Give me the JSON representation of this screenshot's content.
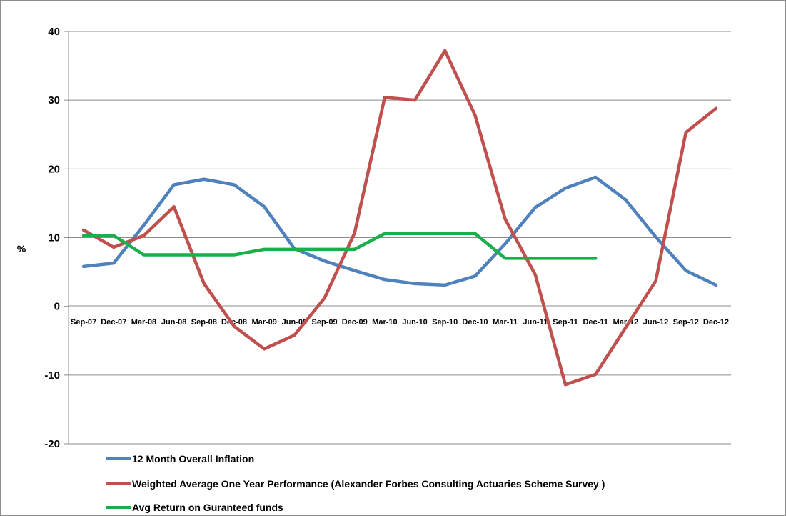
{
  "chart_data": {
    "type": "line",
    "title": "",
    "xlabel": "",
    "ylabel": "%",
    "ylim": [
      -20,
      40
    ],
    "yticks": [
      -20,
      -10,
      0,
      10,
      20,
      30,
      40
    ],
    "grid": true,
    "legend_position": "bottom",
    "categories": [
      "Sep-07",
      "Dec-07",
      "Mar-08",
      "Jun-08",
      "Sep-08",
      "Dec-08",
      "Mar-09",
      "Jun-09",
      "Sep-09",
      "Dec-09",
      "Mar-10",
      "Jun-10",
      "Sep-10",
      "Dec-10",
      "Mar-11",
      "Jun-11",
      "Sep-11",
      "Dec-11",
      "Mar-12",
      "Jun-12",
      "Sep-12",
      "Dec-12"
    ],
    "series": [
      {
        "name": "12 Month Overall Inflation",
        "color": "#4f81bd",
        "values": [
          5.8,
          6.3,
          11.8,
          17.7,
          18.5,
          17.7,
          14.5,
          8.4,
          6.6,
          5.2,
          3.9,
          3.3,
          3.1,
          4.4,
          9.1,
          14.4,
          17.2,
          18.8,
          15.5,
          10.1,
          5.2,
          3.1
        ]
      },
      {
        "name": "Weighted Average One Year Performance (Alexander Forbes Consulting Actuaries Scheme Survey )",
        "color": "#c0504d",
        "values": [
          11.1,
          8.6,
          10.3,
          14.5,
          3.3,
          -2.9,
          -6.2,
          -4.2,
          1.2,
          10.7,
          30.4,
          30.0,
          37.2,
          27.8,
          12.7,
          4.6,
          -11.4,
          -9.9,
          -3.1,
          3.7,
          25.3,
          28.8
        ]
      },
      {
        "name": "Avg Return on Guranteed funds",
        "color": "#1aaf4a",
        "values": [
          10.3,
          10.3,
          7.5,
          7.5,
          7.5,
          7.5,
          8.3,
          8.3,
          8.3,
          8.3,
          10.6,
          10.6,
          10.6,
          10.6,
          7.0,
          7.0,
          7.0,
          7.0,
          null,
          null,
          null,
          null
        ]
      }
    ]
  }
}
